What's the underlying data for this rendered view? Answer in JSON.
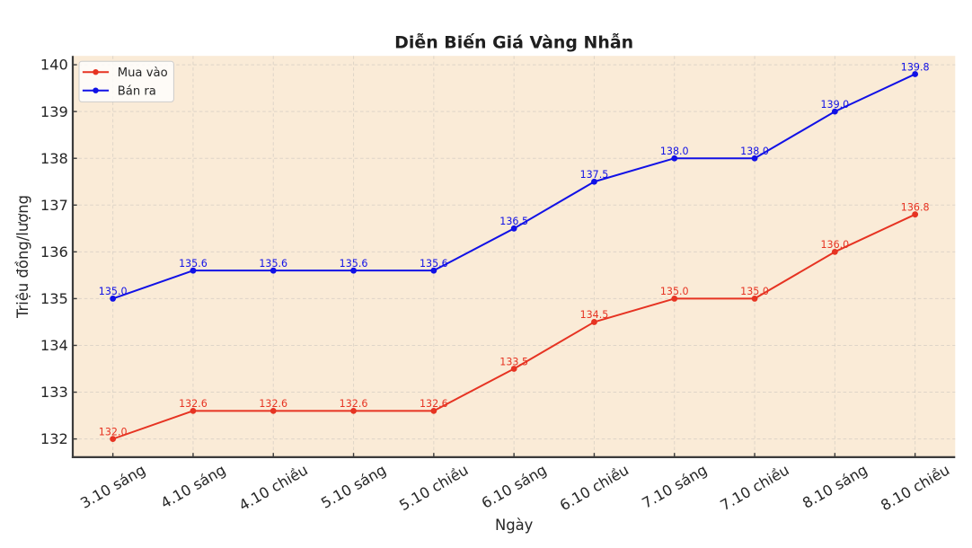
{
  "chart_data": {
    "type": "line",
    "title": "Diễn Biến Giá Vàng Nhẫn",
    "xlabel": "Ngày",
    "ylabel": "Triệu đồng/lượng",
    "categories": [
      "3.10 sáng",
      "4.10 sáng",
      "4.10 chiều",
      "5.10 sáng",
      "5.10 chiều",
      "6.10 sáng",
      "6.10 chiều",
      "7.10 sáng",
      "7.10 chiều",
      "8.10 sáng",
      "8.10 chiều"
    ],
    "series": [
      {
        "name": "Mua vào",
        "color": "#e63322",
        "values": [
          132.0,
          132.6,
          132.6,
          132.6,
          132.6,
          133.5,
          134.5,
          135.0,
          135.0,
          136.0,
          136.8
        ],
        "point_labels": [
          "132.0",
          "132.6",
          "132.6",
          "132.6",
          "132.6",
          "133.5",
          "134.5",
          "135.0",
          "135.0",
          "136.0",
          "136.8"
        ]
      },
      {
        "name": "Bán ra",
        "color": "#1111e6",
        "values": [
          135.0,
          135.6,
          135.6,
          135.6,
          135.6,
          136.5,
          137.5,
          138.0,
          138.0,
          139.0,
          139.8
        ],
        "point_labels": [
          "135.0",
          "135.6",
          "135.6",
          "135.6",
          "135.6",
          "136.5",
          "137.5",
          "138.0",
          "138.0",
          "139.0",
          "139.8"
        ]
      }
    ],
    "ylim": [
      131.61,
      140.19
    ],
    "yticks": [
      132,
      133,
      134,
      135,
      136,
      137,
      138,
      139,
      140
    ],
    "grid": true,
    "grid_linestyle": "dashed",
    "legend_position": "upper left",
    "legend_labels": [
      "Mua vào",
      "Bán ra"
    ],
    "marker": "o",
    "plot_bg": "#faebd7",
    "fig_bg": "#ffffff",
    "grid_color": "#b0b0b0",
    "axis_color": "#3b3b3b",
    "tick_label_color": "#262626",
    "title_color": "#1f1f1f",
    "x_tick_rotation_deg": 30
  }
}
